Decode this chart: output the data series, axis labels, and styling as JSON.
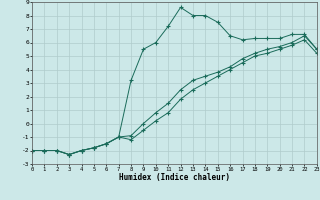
{
  "xlabel": "Humidex (Indice chaleur)",
  "bg_color": "#cce8e8",
  "grid_color": "#b0cccc",
  "line_color": "#1a6b5a",
  "xlim": [
    0,
    23
  ],
  "ylim": [
    -3,
    9
  ],
  "xticks": [
    0,
    1,
    2,
    3,
    4,
    5,
    6,
    7,
    8,
    9,
    10,
    11,
    12,
    13,
    14,
    15,
    16,
    17,
    18,
    19,
    20,
    21,
    22,
    23
  ],
  "yticks": [
    -3,
    -2,
    -1,
    0,
    1,
    2,
    3,
    4,
    5,
    6,
    7,
    8,
    9
  ],
  "line_peaked_x": [
    0,
    1,
    2,
    3,
    4,
    5,
    6,
    7,
    8,
    9,
    10,
    11,
    12,
    13,
    14,
    15,
    16,
    17,
    18,
    19,
    20,
    21,
    22,
    23
  ],
  "line_peaked_y": [
    -2,
    -2,
    -2,
    -2.3,
    -2,
    -1.8,
    -1.5,
    -1,
    3.2,
    5.5,
    6.0,
    7.2,
    8.6,
    8.0,
    8.0,
    7.5,
    6.5,
    6.2,
    6.3,
    6.3,
    6.3,
    6.6,
    6.6,
    5.5
  ],
  "line_mid_x": [
    0,
    1,
    2,
    3,
    4,
    5,
    6,
    7,
    8,
    9,
    10,
    11,
    12,
    13,
    14,
    15,
    16,
    17,
    18,
    19,
    20,
    21,
    22,
    23
  ],
  "line_mid_y": [
    -2,
    -2,
    -2,
    -2.3,
    -2,
    -1.8,
    -1.5,
    -1,
    -0.9,
    0.0,
    0.8,
    1.5,
    2.5,
    3.2,
    3.5,
    3.8,
    4.2,
    4.8,
    5.2,
    5.5,
    5.7,
    6.0,
    6.5,
    5.5
  ],
  "line_low_x": [
    0,
    1,
    2,
    3,
    4,
    5,
    6,
    7,
    8,
    9,
    10,
    11,
    12,
    13,
    14,
    15,
    16,
    17,
    18,
    19,
    20,
    21,
    22,
    23
  ],
  "line_low_y": [
    -2,
    -2,
    -2,
    -2.3,
    -2,
    -1.8,
    -1.5,
    -1,
    -1.2,
    -0.5,
    0.2,
    0.8,
    1.8,
    2.5,
    3.0,
    3.5,
    4.0,
    4.5,
    5.0,
    5.2,
    5.5,
    5.8,
    6.2,
    5.2
  ]
}
